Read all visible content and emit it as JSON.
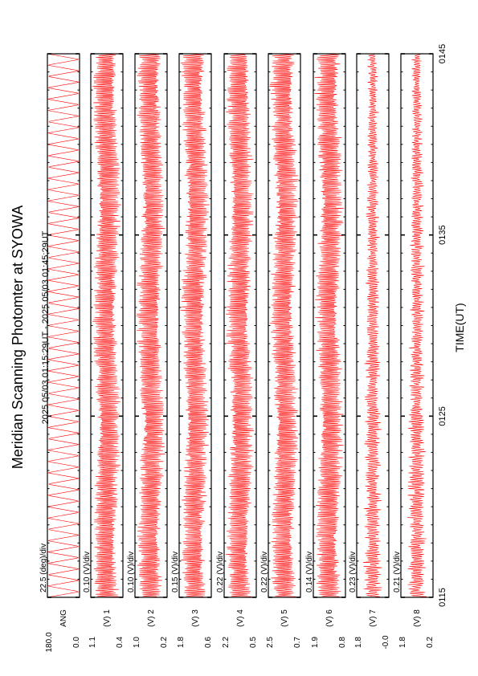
{
  "chart_data": {
    "type": "line",
    "title": "Meridian Scanning Photomter at SYOWA",
    "time_range_label": "2025 05/03 01:15:29UT - 2025 05/03 01:45:29UT",
    "xlabel": "TIME(UT)",
    "x_ticks": [
      "0115",
      "0125",
      "0135",
      "0145"
    ],
    "x_range_minutes": [
      0,
      30
    ],
    "panels": [
      {
        "name": "ANG",
        "scale_label": "22.5 (deg)/div",
        "range_labels": [
          "180.0",
          "0.0"
        ],
        "min": 0.0,
        "max": 180.0,
        "pattern": "scan"
      },
      {
        "name": "(V) 1",
        "scale_label": "0.10 (V)/div",
        "range_labels": [
          "1.1",
          "0.4"
        ],
        "min": 0.4,
        "max": 1.1,
        "pattern": "dense"
      },
      {
        "name": "(V) 2",
        "scale_label": "0.10 (V)/div",
        "range_labels": [
          "1.0",
          "0.2"
        ],
        "min": 0.2,
        "max": 1.0,
        "pattern": "dense"
      },
      {
        "name": "(V) 3",
        "scale_label": "0.15 (V)/div",
        "range_labels": [
          "1.8",
          "0.6"
        ],
        "min": 0.6,
        "max": 1.8,
        "pattern": "dense"
      },
      {
        "name": "(V) 4",
        "scale_label": "0.22 (V)/div",
        "range_labels": [
          "2.2",
          "0.5"
        ],
        "min": 0.5,
        "max": 2.2,
        "pattern": "dense"
      },
      {
        "name": "(V) 5",
        "scale_label": "0.22 (V)/div",
        "range_labels": [
          "2.5",
          "0.7"
        ],
        "min": 0.7,
        "max": 2.5,
        "pattern": "dense"
      },
      {
        "name": "(V) 6",
        "scale_label": "0.14 (V)/div",
        "range_labels": [
          "1.9",
          "0.8"
        ],
        "min": 0.8,
        "max": 1.9,
        "pattern": "dense"
      },
      {
        "name": "(V) 7",
        "scale_label": "0.23 (V)/div",
        "range_labels": [
          "1.8",
          "-0.0"
        ],
        "min": 0.0,
        "max": 1.8,
        "pattern": "sparse"
      },
      {
        "name": "(V) 8",
        "scale_label": "0.21 (V)/div",
        "range_labels": [
          "1.8",
          "0.2"
        ],
        "min": 0.2,
        "max": 1.8,
        "pattern": "sparse"
      }
    ],
    "grid": false,
    "orientation": "rotated-90"
  }
}
